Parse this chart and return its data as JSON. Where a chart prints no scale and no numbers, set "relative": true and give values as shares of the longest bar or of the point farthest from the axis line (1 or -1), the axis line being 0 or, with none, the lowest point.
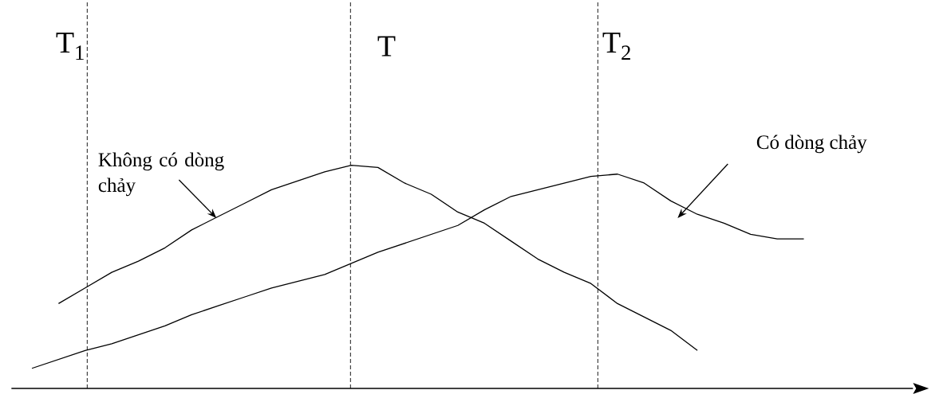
{
  "chart_data": {
    "type": "line",
    "relative": true,
    "tick_labels": false,
    "marker": "none",
    "line_style": "solid",
    "categories": [
      null,
      null,
      null,
      null,
      null,
      null,
      null,
      null,
      null,
      null,
      null,
      null,
      null,
      null,
      null,
      null,
      null,
      null,
      null,
      null,
      null,
      null,
      null,
      null,
      null,
      null,
      null,
      null,
      null,
      null
    ],
    "series": [
      {
        "color": "#000000",
        "values": [
          null,
          0.38,
          0.45,
          0.52,
          0.57,
          0.63,
          0.71,
          0.77,
          0.83,
          0.89,
          0.93,
          0.97,
          1.0,
          0.99,
          0.92,
          0.87,
          0.79,
          0.74,
          0.66,
          0.58,
          0.52,
          0.47,
          0.38,
          0.32,
          0.26,
          0.17,
          null,
          null,
          null,
          null
        ]
      },
      {
        "color": "#000000",
        "values": [
          0.09,
          0.13,
          0.17,
          0.2,
          0.24,
          0.28,
          0.33,
          0.37,
          0.41,
          0.45,
          0.48,
          0.51,
          0.56,
          0.61,
          0.65,
          0.69,
          0.73,
          0.8,
          0.86,
          0.89,
          0.92,
          0.95,
          0.96,
          0.92,
          0.84,
          0.78,
          0.74,
          0.69,
          0.67,
          0.67
        ]
      }
    ],
    "annotations": [
      "T$_{1}$",
      "T",
      "T$_{2}$",
      "Không có dòng chảy",
      "Có dòng chảy"
    ]
  }
}
